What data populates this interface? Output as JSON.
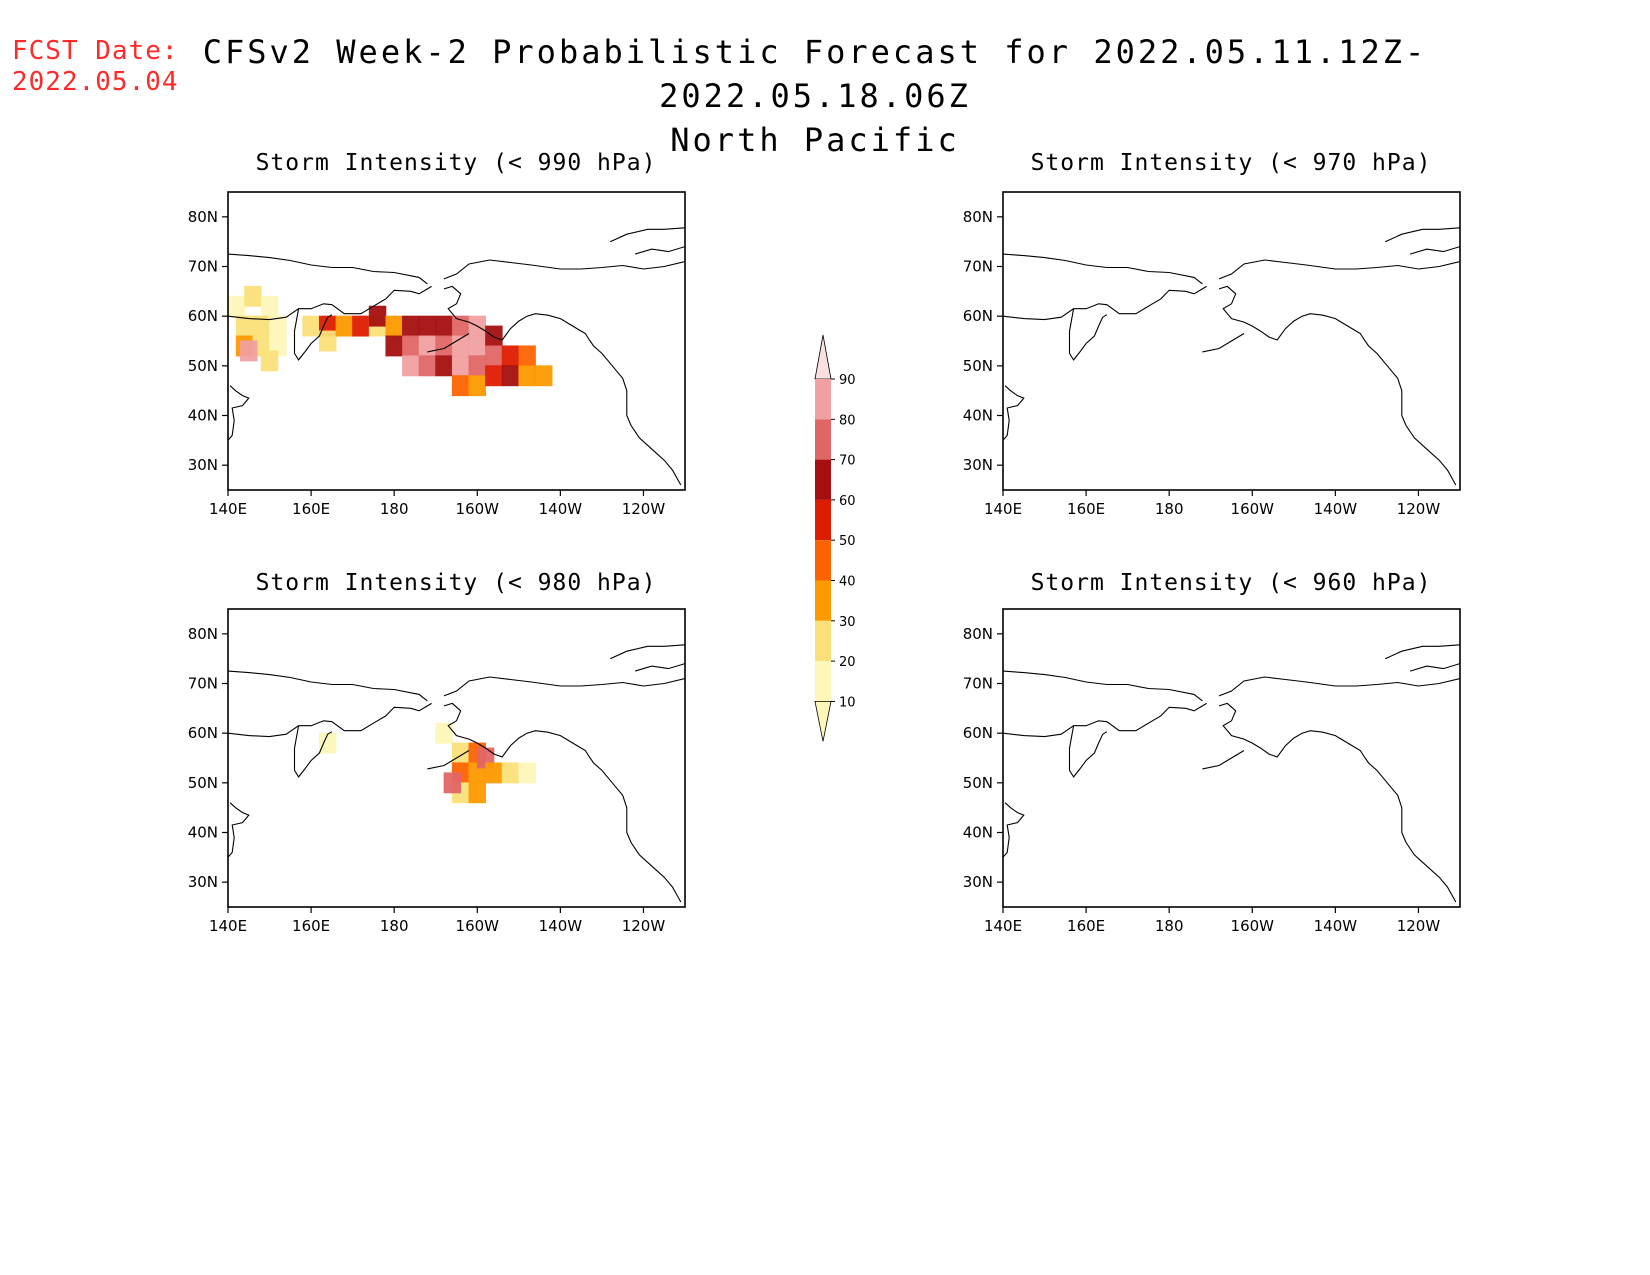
{
  "header": {
    "fcst_label": "FCST Date:",
    "fcst_date": "2022.05.04",
    "title_line1": "CFSv2 Week-2 Probabilistic Forecast for 2022.05.11.12Z-2022.05.18.06Z",
    "title_line2": "North Pacific"
  },
  "axes": {
    "lon_ticks": [
      "140E",
      "160E",
      "180",
      "160W",
      "140W",
      "120W"
    ],
    "lat_ticks": [
      "80N",
      "70N",
      "60N",
      "50N",
      "40N",
      "30N"
    ],
    "lon_range_deg_east": [
      140,
      250
    ],
    "lat_range": [
      25,
      85
    ]
  },
  "panels": [
    {
      "title": "Storm Intensity (< 990 hPa)",
      "threshold_hPa": 990
    },
    {
      "title": "Storm Intensity (< 970 hPa)",
      "threshold_hPa": 970
    },
    {
      "title": "Storm Intensity (< 980 hPa)",
      "threshold_hPa": 980
    },
    {
      "title": "Storm Intensity (< 960 hPa)",
      "threshold_hPa": 960
    }
  ],
  "colorbar": {
    "labels": [
      "90",
      "80",
      "70",
      "60",
      "50",
      "40",
      "30",
      "20",
      "10"
    ],
    "colors": [
      "#fce0e0",
      "#f0a0a0",
      "#e06666",
      "#a50f0f",
      "#dd1c00",
      "#fc6300",
      "#fd9a00",
      "#fbe07a",
      "#fef7b9"
    ]
  },
  "chart_data": {
    "type": "heatmap",
    "units": "probability (%)",
    "levels": [
      10,
      20,
      30,
      40,
      50,
      60,
      70,
      80,
      90
    ],
    "fields": [
      {
        "panel": "Storm Intensity (< 990 hPa)",
        "cells": [
          {
            "lon": 142,
            "lat": 62,
            "p": 15
          },
          {
            "lon": 146,
            "lat": 64,
            "p": 22
          },
          {
            "lon": 150,
            "lat": 62,
            "p": 15
          },
          {
            "lon": 144,
            "lat": 58,
            "p": 22
          },
          {
            "lon": 148,
            "lat": 58,
            "p": 25
          },
          {
            "lon": 152,
            "lat": 58,
            "p": 15
          },
          {
            "lon": 144,
            "lat": 54,
            "p": 38
          },
          {
            "lon": 148,
            "lat": 54,
            "p": 22
          },
          {
            "lon": 152,
            "lat": 54,
            "p": 15
          },
          {
            "lon": 145,
            "lat": 53,
            "p": 85
          },
          {
            "lon": 150,
            "lat": 51,
            "p": 25
          },
          {
            "lon": 160,
            "lat": 58,
            "p": 22
          },
          {
            "lon": 164,
            "lat": 58,
            "p": 55
          },
          {
            "lon": 164,
            "lat": 55,
            "p": 22
          },
          {
            "lon": 168,
            "lat": 58,
            "p": 35
          },
          {
            "lon": 172,
            "lat": 58,
            "p": 55
          },
          {
            "lon": 176,
            "lat": 58,
            "p": 22
          },
          {
            "lon": 176,
            "lat": 60,
            "p": 60
          },
          {
            "lon": 180,
            "lat": 58,
            "p": 38
          },
          {
            "lon": 180,
            "lat": 54,
            "p": 62
          },
          {
            "lon": 184,
            "lat": 58,
            "p": 65
          },
          {
            "lon": 184,
            "lat": 54,
            "p": 75
          },
          {
            "lon": 184,
            "lat": 50,
            "p": 85
          },
          {
            "lon": 188,
            "lat": 58,
            "p": 65
          },
          {
            "lon": 188,
            "lat": 54,
            "p": 80
          },
          {
            "lon": 188,
            "lat": 50,
            "p": 75
          },
          {
            "lon": 192,
            "lat": 58,
            "p": 65
          },
          {
            "lon": 192,
            "lat": 54,
            "p": 75
          },
          {
            "lon": 192,
            "lat": 50,
            "p": 65
          },
          {
            "lon": 196,
            "lat": 58,
            "p": 75
          },
          {
            "lon": 196,
            "lat": 54,
            "p": 85
          },
          {
            "lon": 196,
            "lat": 50,
            "p": 80
          },
          {
            "lon": 196,
            "lat": 46,
            "p": 45
          },
          {
            "lon": 200,
            "lat": 58,
            "p": 85
          },
          {
            "lon": 200,
            "lat": 54,
            "p": 80
          },
          {
            "lon": 200,
            "lat": 50,
            "p": 75
          },
          {
            "lon": 200,
            "lat": 46,
            "p": 38
          },
          {
            "lon": 204,
            "lat": 56,
            "p": 65
          },
          {
            "lon": 204,
            "lat": 52,
            "p": 75
          },
          {
            "lon": 204,
            "lat": 48,
            "p": 55
          },
          {
            "lon": 208,
            "lat": 52,
            "p": 55
          },
          {
            "lon": 208,
            "lat": 48,
            "p": 65
          },
          {
            "lon": 212,
            "lat": 52,
            "p": 45
          },
          {
            "lon": 212,
            "lat": 48,
            "p": 35
          },
          {
            "lon": 216,
            "lat": 48,
            "p": 35
          }
        ]
      },
      {
        "panel": "Storm Intensity (< 970 hPa)",
        "cells": []
      },
      {
        "panel": "Storm Intensity (< 980 hPa)",
        "cells": [
          {
            "lon": 164,
            "lat": 58,
            "p": 12
          },
          {
            "lon": 192,
            "lat": 60,
            "p": 15
          },
          {
            "lon": 196,
            "lat": 56,
            "p": 22
          },
          {
            "lon": 196,
            "lat": 52,
            "p": 42
          },
          {
            "lon": 196,
            "lat": 48,
            "p": 25
          },
          {
            "lon": 200,
            "lat": 56,
            "p": 45
          },
          {
            "lon": 200,
            "lat": 52,
            "p": 35
          },
          {
            "lon": 200,
            "lat": 48,
            "p": 35
          },
          {
            "lon": 202,
            "lat": 55,
            "p": 75
          },
          {
            "lon": 204,
            "lat": 52,
            "p": 30
          },
          {
            "lon": 208,
            "lat": 52,
            "p": 22
          },
          {
            "lon": 212,
            "lat": 52,
            "p": 15
          },
          {
            "lon": 194,
            "lat": 50,
            "p": 70
          }
        ]
      },
      {
        "panel": "Storm Intensity (< 960 hPa)",
        "cells": []
      }
    ]
  }
}
